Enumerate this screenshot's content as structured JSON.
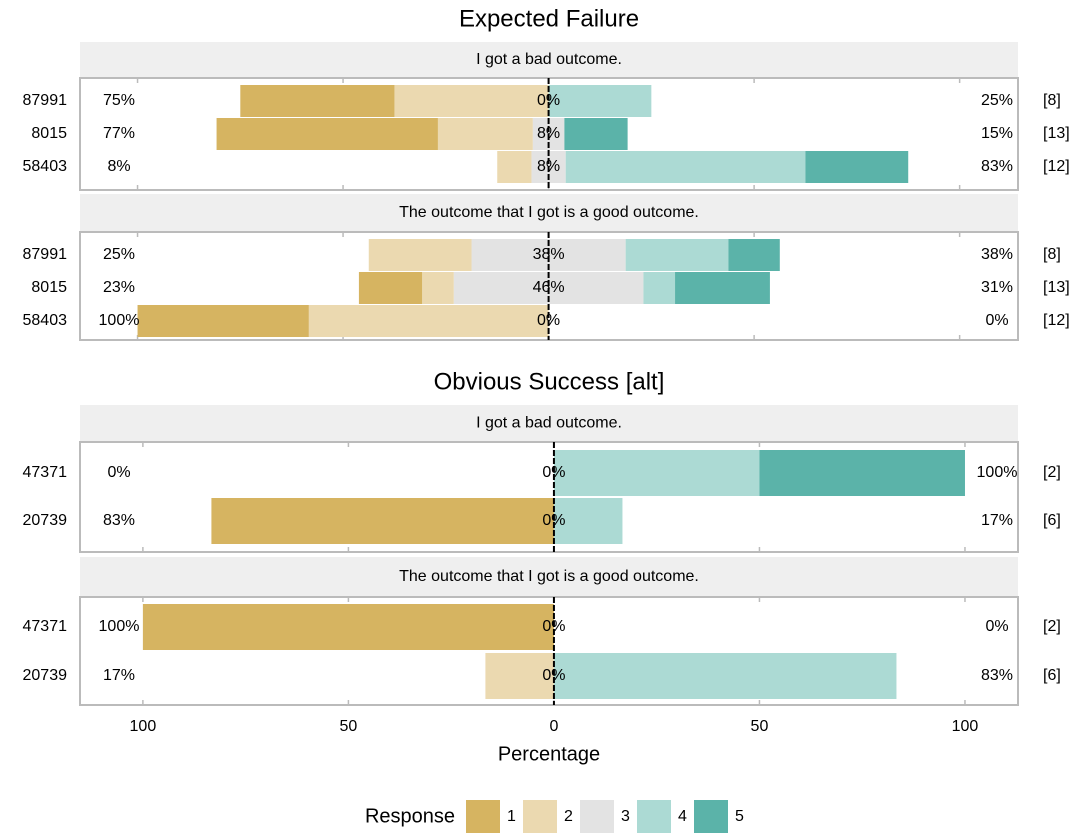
{
  "chart_data": [
    {
      "type": "likert",
      "title": "Expected Failure",
      "xlim": [
        -114,
        114.2
      ],
      "facets": [
        {
          "title": "I got a bad outcome.",
          "categories": [
            "87991",
            "8015",
            "58403"
          ],
          "values": [
            [
              37.5,
              53.85,
              0
            ],
            [
              37.5,
              23.08,
              8.33
            ],
            [
              0,
              7.69,
              8.33
            ],
            [
              25,
              0,
              58.33
            ],
            [
              0,
              15.38,
              25
            ]
          ],
          "left": [
            75,
            77,
            8
          ],
          "left_labels": [
            "75%",
            "77%",
            "8%"
          ],
          "center": [
            0,
            8,
            8
          ],
          "center_labels": [
            "0%",
            "8%",
            "8%"
          ],
          "right": [
            25,
            15,
            83
          ],
          "right_labels": [
            "25%",
            "15%",
            "83%"
          ],
          "n": [
            8,
            13,
            12
          ],
          "n_labels": [
            "[8]",
            "[13]",
            "[12]"
          ]
        },
        {
          "title": "The outcome that I got is a good outcome.",
          "categories": [
            "87991",
            "8015",
            "58403"
          ],
          "values": [
            [
              0,
              15.38,
              41.67
            ],
            [
              25,
              7.69,
              58.33
            ],
            [
              37.5,
              46.15,
              0
            ],
            [
              25,
              7.69,
              0
            ],
            [
              12.5,
              23.08,
              0
            ]
          ],
          "left": [
            25,
            23,
            100
          ],
          "left_labels": [
            "25%",
            "23%",
            "100%"
          ],
          "center": [
            38,
            46,
            0
          ],
          "center_labels": [
            "38%",
            "46%",
            "0%"
          ],
          "right": [
            38,
            31,
            0
          ],
          "right_labels": [
            "38%",
            "31%",
            "0%"
          ],
          "n": [
            8,
            13,
            12
          ],
          "n_labels": [
            "[8]",
            "[13]",
            "[12]"
          ]
        }
      ]
    },
    {
      "type": "likert",
      "title": "Obvious Success [alt]",
      "xlim": [
        -115.3,
        112.9
      ],
      "xticks": [
        {
          "value": -100,
          "label": "100"
        },
        {
          "value": -50,
          "label": "50"
        },
        0,
        50,
        100
      ],
      "xlabel": "Percentage",
      "facets": [
        {
          "title": "I got a bad outcome.",
          "categories": [
            "47371",
            "20739"
          ],
          "values": [
            [
              0,
              83.33
            ],
            [
              0,
              0
            ],
            [
              0,
              0
            ],
            [
              50,
              16.67
            ],
            [
              50,
              0
            ]
          ],
          "left": [
            0,
            83
          ],
          "left_labels": [
            "0%",
            "83%"
          ],
          "center": [
            0,
            0
          ],
          "center_labels": [
            "0%",
            "0%"
          ],
          "right": [
            100,
            17
          ],
          "right_labels": [
            "100%",
            "17%"
          ],
          "n": [
            2,
            6
          ],
          "n_labels": [
            "[2]",
            "[6]"
          ]
        },
        {
          "title": "The outcome that I got is a good outcome.",
          "categories": [
            "47371",
            "20739"
          ],
          "values": [
            [
              100,
              0
            ],
            [
              0,
              16.67
            ],
            [
              0,
              0
            ],
            [
              0,
              83.33
            ],
            [
              0,
              0
            ]
          ],
          "left": [
            100,
            17
          ],
          "left_labels": [
            "100%",
            "17%"
          ],
          "center": [
            0,
            0
          ],
          "center_labels": [
            "0%",
            "0%"
          ],
          "right": [
            0,
            83
          ],
          "right_labels": [
            "0%",
            "83%"
          ],
          "n": [
            2,
            6
          ],
          "n_labels": [
            "[2]",
            "[6]"
          ]
        }
      ]
    }
  ],
  "legend": {
    "title": "Response",
    "names": [
      "1",
      "2",
      "3",
      "4",
      "5"
    ],
    "colors": [
      "#d6b461",
      "#ebd9b0",
      "#e3e3e3",
      "#acdad4",
      "#5bb3a9"
    ]
  }
}
